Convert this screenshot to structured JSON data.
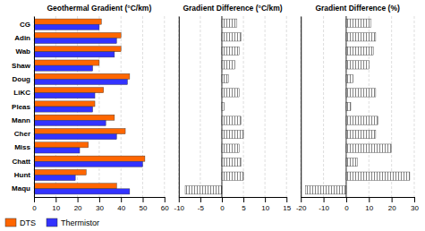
{
  "chart_data": [
    {
      "type": "bar",
      "orientation": "horizontal",
      "title": "Geothermal Gradient (°C/km)",
      "categories": [
        "CG",
        "Adin",
        "Wab",
        "Shaw",
        "Doug",
        "LiKC",
        "Pleas",
        "Mann",
        "Cher",
        "Miss",
        "Chatt",
        "Hunt",
        "Maqu"
      ],
      "series": [
        {
          "name": "DTS",
          "color": "#FF6600",
          "values": [
            31,
            40,
            40,
            30,
            44,
            32,
            28,
            37,
            42,
            25,
            51,
            24,
            38
          ]
        },
        {
          "name": "Thermistor",
          "color": "#3333FF",
          "values": [
            30,
            38,
            37,
            27,
            43,
            28,
            27,
            33,
            38,
            21,
            50,
            19,
            44
          ]
        }
      ],
      "xlim": [
        0,
        60
      ],
      "xticks": [
        0,
        10,
        20,
        30,
        40,
        50,
        60
      ],
      "grid": true,
      "legend": "bottom"
    },
    {
      "type": "bar",
      "orientation": "horizontal",
      "title": "Gradient Difference (°C/km)",
      "categories": [
        "CG",
        "Adin",
        "Wab",
        "Shaw",
        "Doug",
        "LiKC",
        "Pleas",
        "Mann",
        "Cher",
        "Miss",
        "Chatt",
        "Hunt",
        "Maqu"
      ],
      "values": [
        3.5,
        4.5,
        4.0,
        3.0,
        1.5,
        4.0,
        0.5,
        4.5,
        5.0,
        4.0,
        4.5,
        5.0,
        -8.5
      ],
      "color": "#FFFFFF",
      "xlim": [
        -10,
        15
      ],
      "xticks": [
        -10,
        -5,
        0,
        5,
        10,
        15
      ],
      "grid": true,
      "tick_labels": "x"
    },
    {
      "type": "bar",
      "orientation": "horizontal",
      "title": "Gradient Difference (%)",
      "categories": [
        "CG",
        "Adin",
        "Wab",
        "Shaw",
        "Doug",
        "LiKC",
        "Pleas",
        "Mann",
        "Cher",
        "Miss",
        "Chatt",
        "Hunt",
        "Maqu"
      ],
      "values": [
        11,
        13,
        12,
        10,
        3,
        13,
        2,
        14,
        13,
        20,
        5,
        28,
        -18
      ],
      "color": "#FFFFFF",
      "xlim": [
        -20,
        30
      ],
      "xticks": [
        -20,
        -10,
        0,
        10,
        20,
        30
      ],
      "grid": true,
      "tick_labels": "x"
    }
  ]
}
